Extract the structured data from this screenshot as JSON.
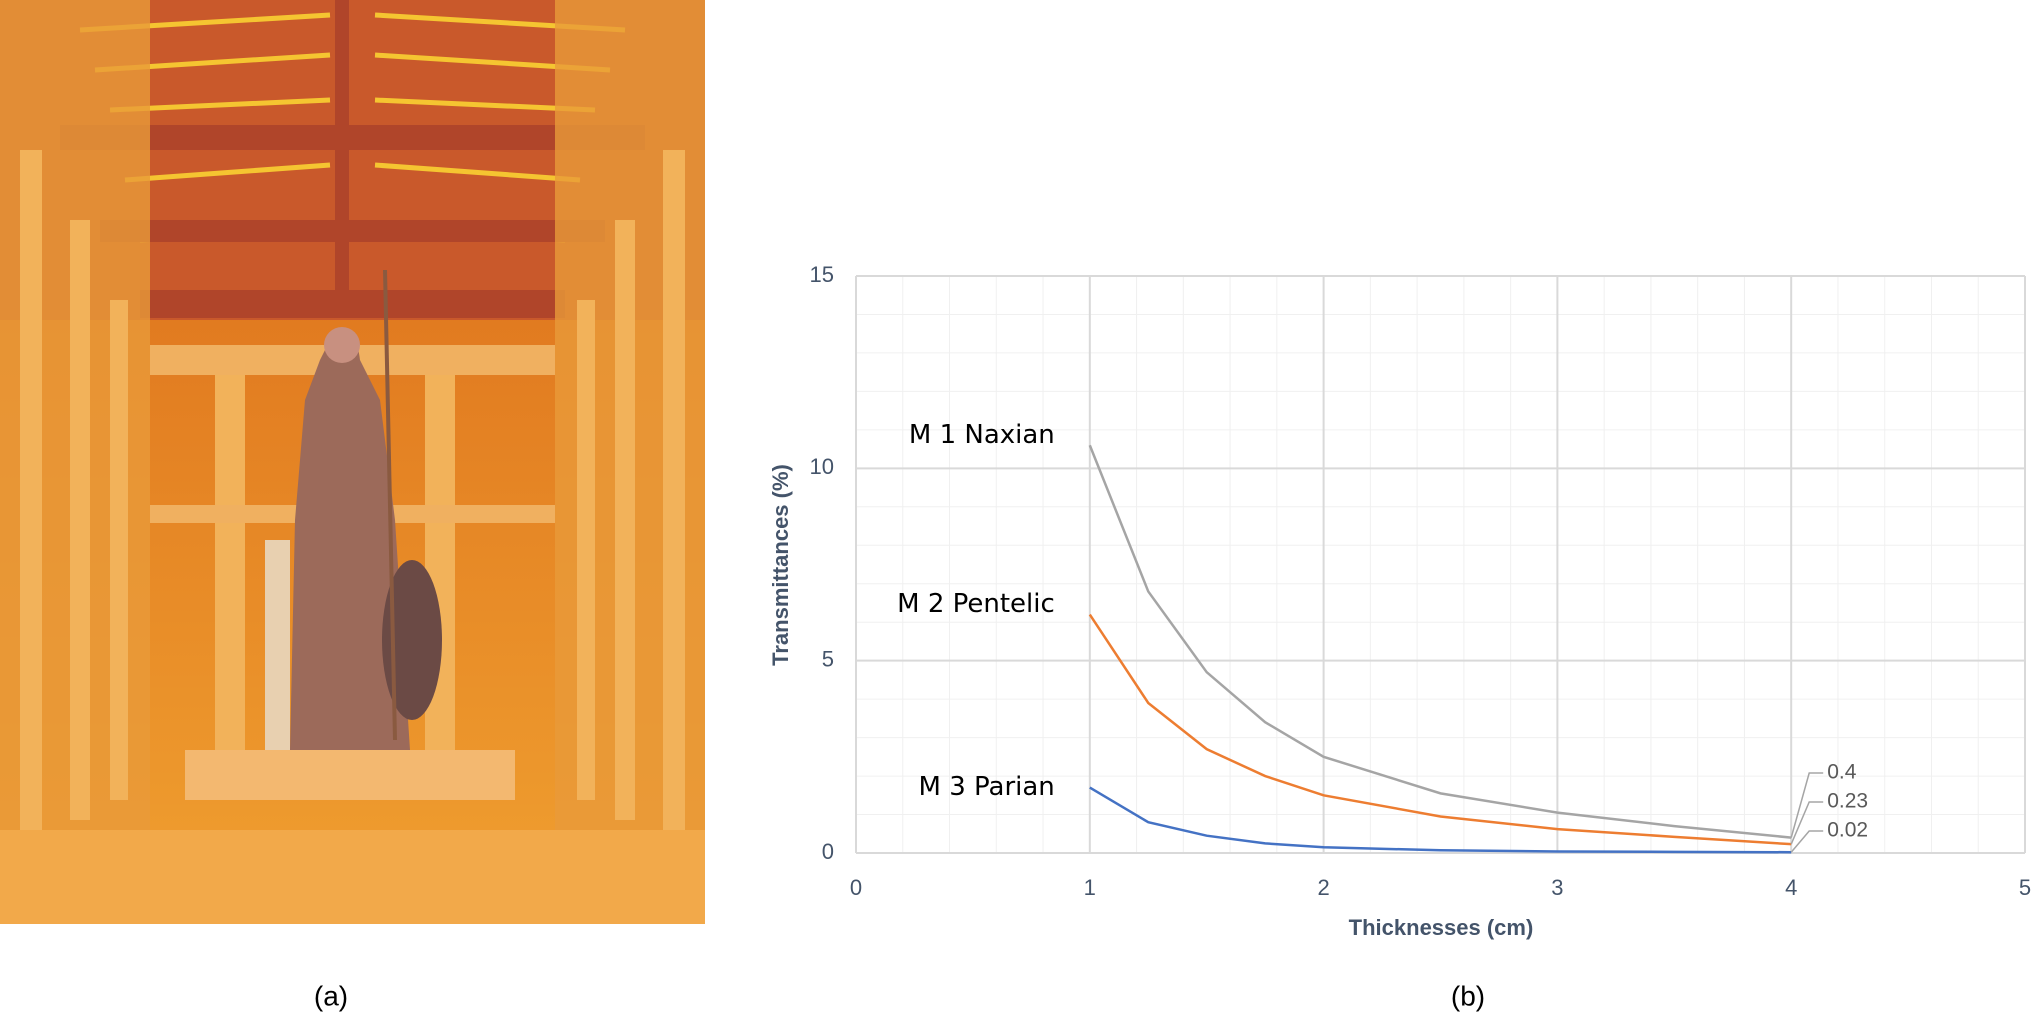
{
  "captions": [
    "(a)",
    "(b)"
  ],
  "chart_data": {
    "type": "line",
    "x_label": "Thicknesses (cm)",
    "y_label": "Transmittances (%)",
    "x": [
      1,
      1.25,
      1.5,
      1.75,
      2,
      2.5,
      3,
      3.5,
      4
    ],
    "series": [
      {
        "name": "M 1 Naxian",
        "color": "#a5a5a5",
        "values": [
          10.6,
          6.8,
          4.7,
          3.4,
          2.5,
          1.55,
          1.05,
          0.7,
          0.4
        ]
      },
      {
        "name": "M 2 Pentelic",
        "color": "#ed7d31",
        "values": [
          6.2,
          3.9,
          2.7,
          2.0,
          1.5,
          0.95,
          0.62,
          0.42,
          0.23
        ]
      },
      {
        "name": "M 3 Parian",
        "color": "#4472c4",
        "values": [
          1.7,
          0.8,
          0.45,
          0.25,
          0.15,
          0.07,
          0.04,
          0.03,
          0.02
        ]
      }
    ],
    "xlim": [
      0,
      5
    ],
    "xticks": [
      0,
      1,
      2,
      3,
      4,
      5
    ],
    "ylim": [
      0,
      15
    ],
    "yticks": [
      0,
      5,
      10,
      15
    ],
    "grid": true
  }
}
